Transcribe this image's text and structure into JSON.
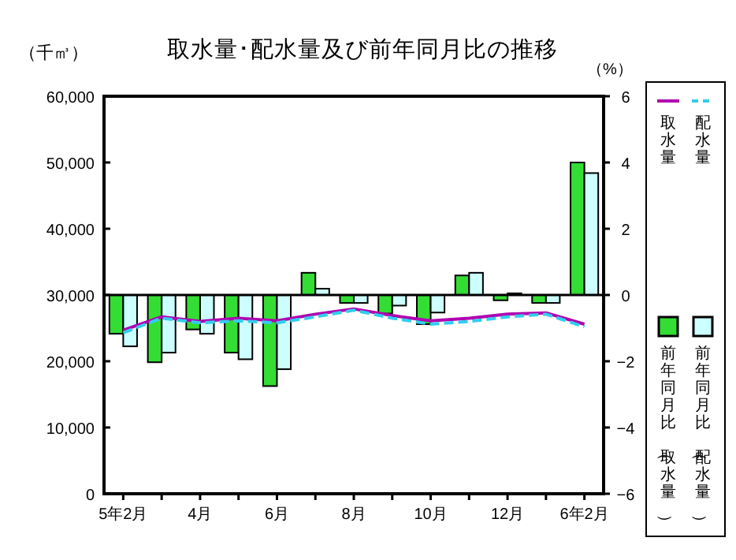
{
  "chart_data": {
    "type": "bar",
    "title": "取水量･配水量及び前年同月比の推移",
    "ylabel": "（千㎥）",
    "y2label": "（%）",
    "categories": [
      "5年2月",
      null,
      "4月",
      null,
      "6月",
      null,
      "8月",
      null,
      "10月",
      null,
      "12月",
      null,
      "6年2月"
    ],
    "series": [
      {
        "name": "前年同月比（取水量）",
        "axis": "y2",
        "color": "#33dd33",
        "values": [
          -1.17,
          -2.03,
          -1.04,
          -1.74,
          -2.75,
          0.67,
          -0.24,
          -0.56,
          -0.88,
          0.59,
          -0.16,
          -0.24,
          4.0
        ]
      },
      {
        "name": "前年同月比（配水量）",
        "axis": "y2",
        "color": "#ccffff",
        "values": [
          -1.55,
          -1.74,
          -1.17,
          -1.94,
          -2.24,
          0.19,
          -0.24,
          -0.32,
          -0.53,
          0.67,
          0.05,
          -0.24,
          3.68
        ]
      },
      {
        "name": "取水量",
        "type": "line",
        "axis": "y",
        "color": "#b000b0",
        "line_style": "solid",
        "values": [
          24700,
          26700,
          26000,
          26500,
          26100,
          27100,
          27900,
          26900,
          26100,
          26500,
          27100,
          27300,
          25600
        ]
      },
      {
        "name": "配水量",
        "type": "line",
        "axis": "y",
        "color": "#33ccee",
        "line_style": "dashed",
        "values": [
          24300,
          26500,
          25800,
          26100,
          25800,
          26700,
          27700,
          26500,
          25600,
          26000,
          26700,
          27100,
          25200
        ]
      }
    ],
    "ylim": [
      0,
      60000
    ],
    "yticks": [
      0,
      {
        "value": 10000,
        "label": "10,000"
      },
      {
        "value": 20000,
        "label": "20,000"
      },
      {
        "value": 30000,
        "label": "30,000"
      },
      {
        "value": 40000,
        "label": "40,000"
      },
      {
        "value": 50000,
        "label": "50,000"
      },
      {
        "value": 60000,
        "label": "60,000"
      }
    ],
    "y2lim": [
      -6,
      6
    ],
    "y2ticks": [
      -6,
      -4,
      -2,
      0,
      2,
      4,
      6
    ],
    "ref_lines": [
      {
        "axis": "y2",
        "value": 0
      }
    ],
    "legend": "right"
  }
}
